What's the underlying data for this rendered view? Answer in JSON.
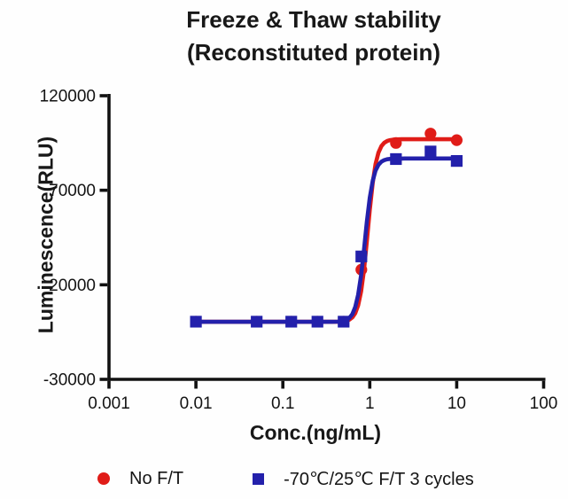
{
  "title": {
    "line1": "Freeze & Thaw stability",
    "line2": "(Reconstituted protein)"
  },
  "chart_data": {
    "type": "line",
    "title": "Freeze & Thaw stability (Reconstituted protein)",
    "xlabel": "Conc.(ng/mL)",
    "ylabel": "Luminescence(RLU)",
    "x_scale": "log",
    "y_scale": "linear",
    "xlim": [
      0.001,
      100
    ],
    "ylim": [
      -30000,
      120000
    ],
    "grid": false,
    "legend_position": "bottom",
    "axis_color": "#111111",
    "x_ticks": [
      {
        "v": 0.001,
        "label": "0.001"
      },
      {
        "v": 0.01,
        "label": "0.01"
      },
      {
        "v": 0.1,
        "label": "0.1"
      },
      {
        "v": 1,
        "label": "1"
      },
      {
        "v": 10,
        "label": "10"
      },
      {
        "v": 100,
        "label": "100"
      }
    ],
    "y_ticks": [
      {
        "v": 120000,
        "label": "120000"
      },
      {
        "v": 70000,
        "label": "70000"
      },
      {
        "v": 20000,
        "label": "20000"
      },
      {
        "v": -30000,
        "label": "-30000"
      }
    ],
    "series": [
      {
        "name": "No F/T",
        "color": "#e01c18",
        "marker": "circle",
        "x": [
          0.01,
          0.05,
          0.125,
          0.25,
          0.5,
          0.8,
          2,
          5,
          10
        ],
        "y": [
          500,
          500,
          500,
          500,
          500,
          28000,
          95000,
          100000,
          96500
        ],
        "fit_4pl": {
          "bottom": 400,
          "top": 97000,
          "ec50": 0.95,
          "hill": 9
        }
      },
      {
        "name": "-70℃/25℃ F/T 3 cycles",
        "color": "#2320ab",
        "marker": "square",
        "x": [
          0.01,
          0.05,
          0.125,
          0.25,
          0.5,
          0.8,
          2,
          5,
          10
        ],
        "y": [
          500,
          500,
          500,
          500,
          500,
          35000,
          86500,
          90500,
          85500
        ],
        "fit_4pl": {
          "bottom": 400,
          "top": 86800,
          "ec50": 0.88,
          "hill": 9
        }
      }
    ]
  }
}
